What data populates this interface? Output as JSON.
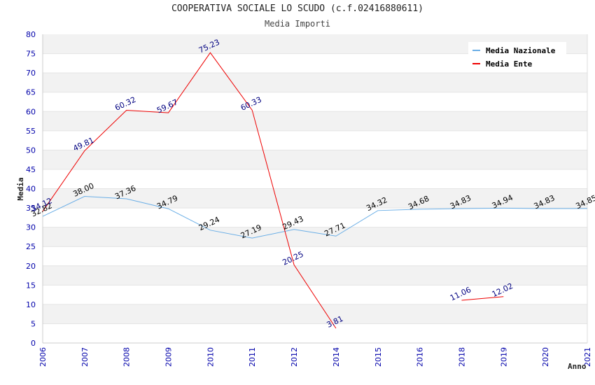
{
  "chart_data": {
    "type": "line",
    "title": "COOPERATIVA SOCIALE LO SCUDO (c.f.02416880611)",
    "subtitle": "Media Importi",
    "xlabel": "Anno",
    "ylabel": "Media",
    "ylim": [
      0,
      80
    ],
    "yticks": [
      0,
      5,
      10,
      15,
      20,
      25,
      30,
      35,
      40,
      45,
      50,
      55,
      60,
      65,
      70,
      75,
      80
    ],
    "categories": [
      "2006",
      "2007",
      "2008",
      "2009",
      "2010",
      "2011",
      "2012",
      "2014",
      "2015",
      "2016",
      "2018",
      "2019",
      "2020",
      "2021"
    ],
    "grid": "horizontal bands",
    "legend_position": "top-right",
    "series": [
      {
        "name": "Media Nazionale",
        "color": "#6aaee6",
        "label_color": "#000000",
        "values": [
          32.82,
          38.0,
          37.36,
          34.79,
          29.24,
          27.19,
          29.43,
          27.71,
          34.32,
          34.68,
          34.83,
          34.94,
          34.83,
          34.85
        ],
        "labels": [
          "32.82",
          "38.00",
          "37.36",
          "34.79",
          "29.24",
          "27.19",
          "29.43",
          "27.71",
          "34.32",
          "34.68",
          "34.83",
          "34.94",
          "34.83",
          "34.85"
        ]
      },
      {
        "name": "Media Ente",
        "color": "#ee0000",
        "label_color": "#000080",
        "values": [
          34.12,
          49.81,
          60.32,
          59.67,
          75.23,
          60.33,
          20.25,
          3.81,
          null,
          null,
          11.06,
          12.02,
          null,
          null
        ],
        "labels": [
          "34.12",
          "49.81",
          "60.32",
          "59.67",
          "75.23",
          "60.33",
          "20.25",
          "3.81",
          null,
          null,
          "11.06",
          "12.02",
          null,
          null
        ]
      }
    ]
  }
}
